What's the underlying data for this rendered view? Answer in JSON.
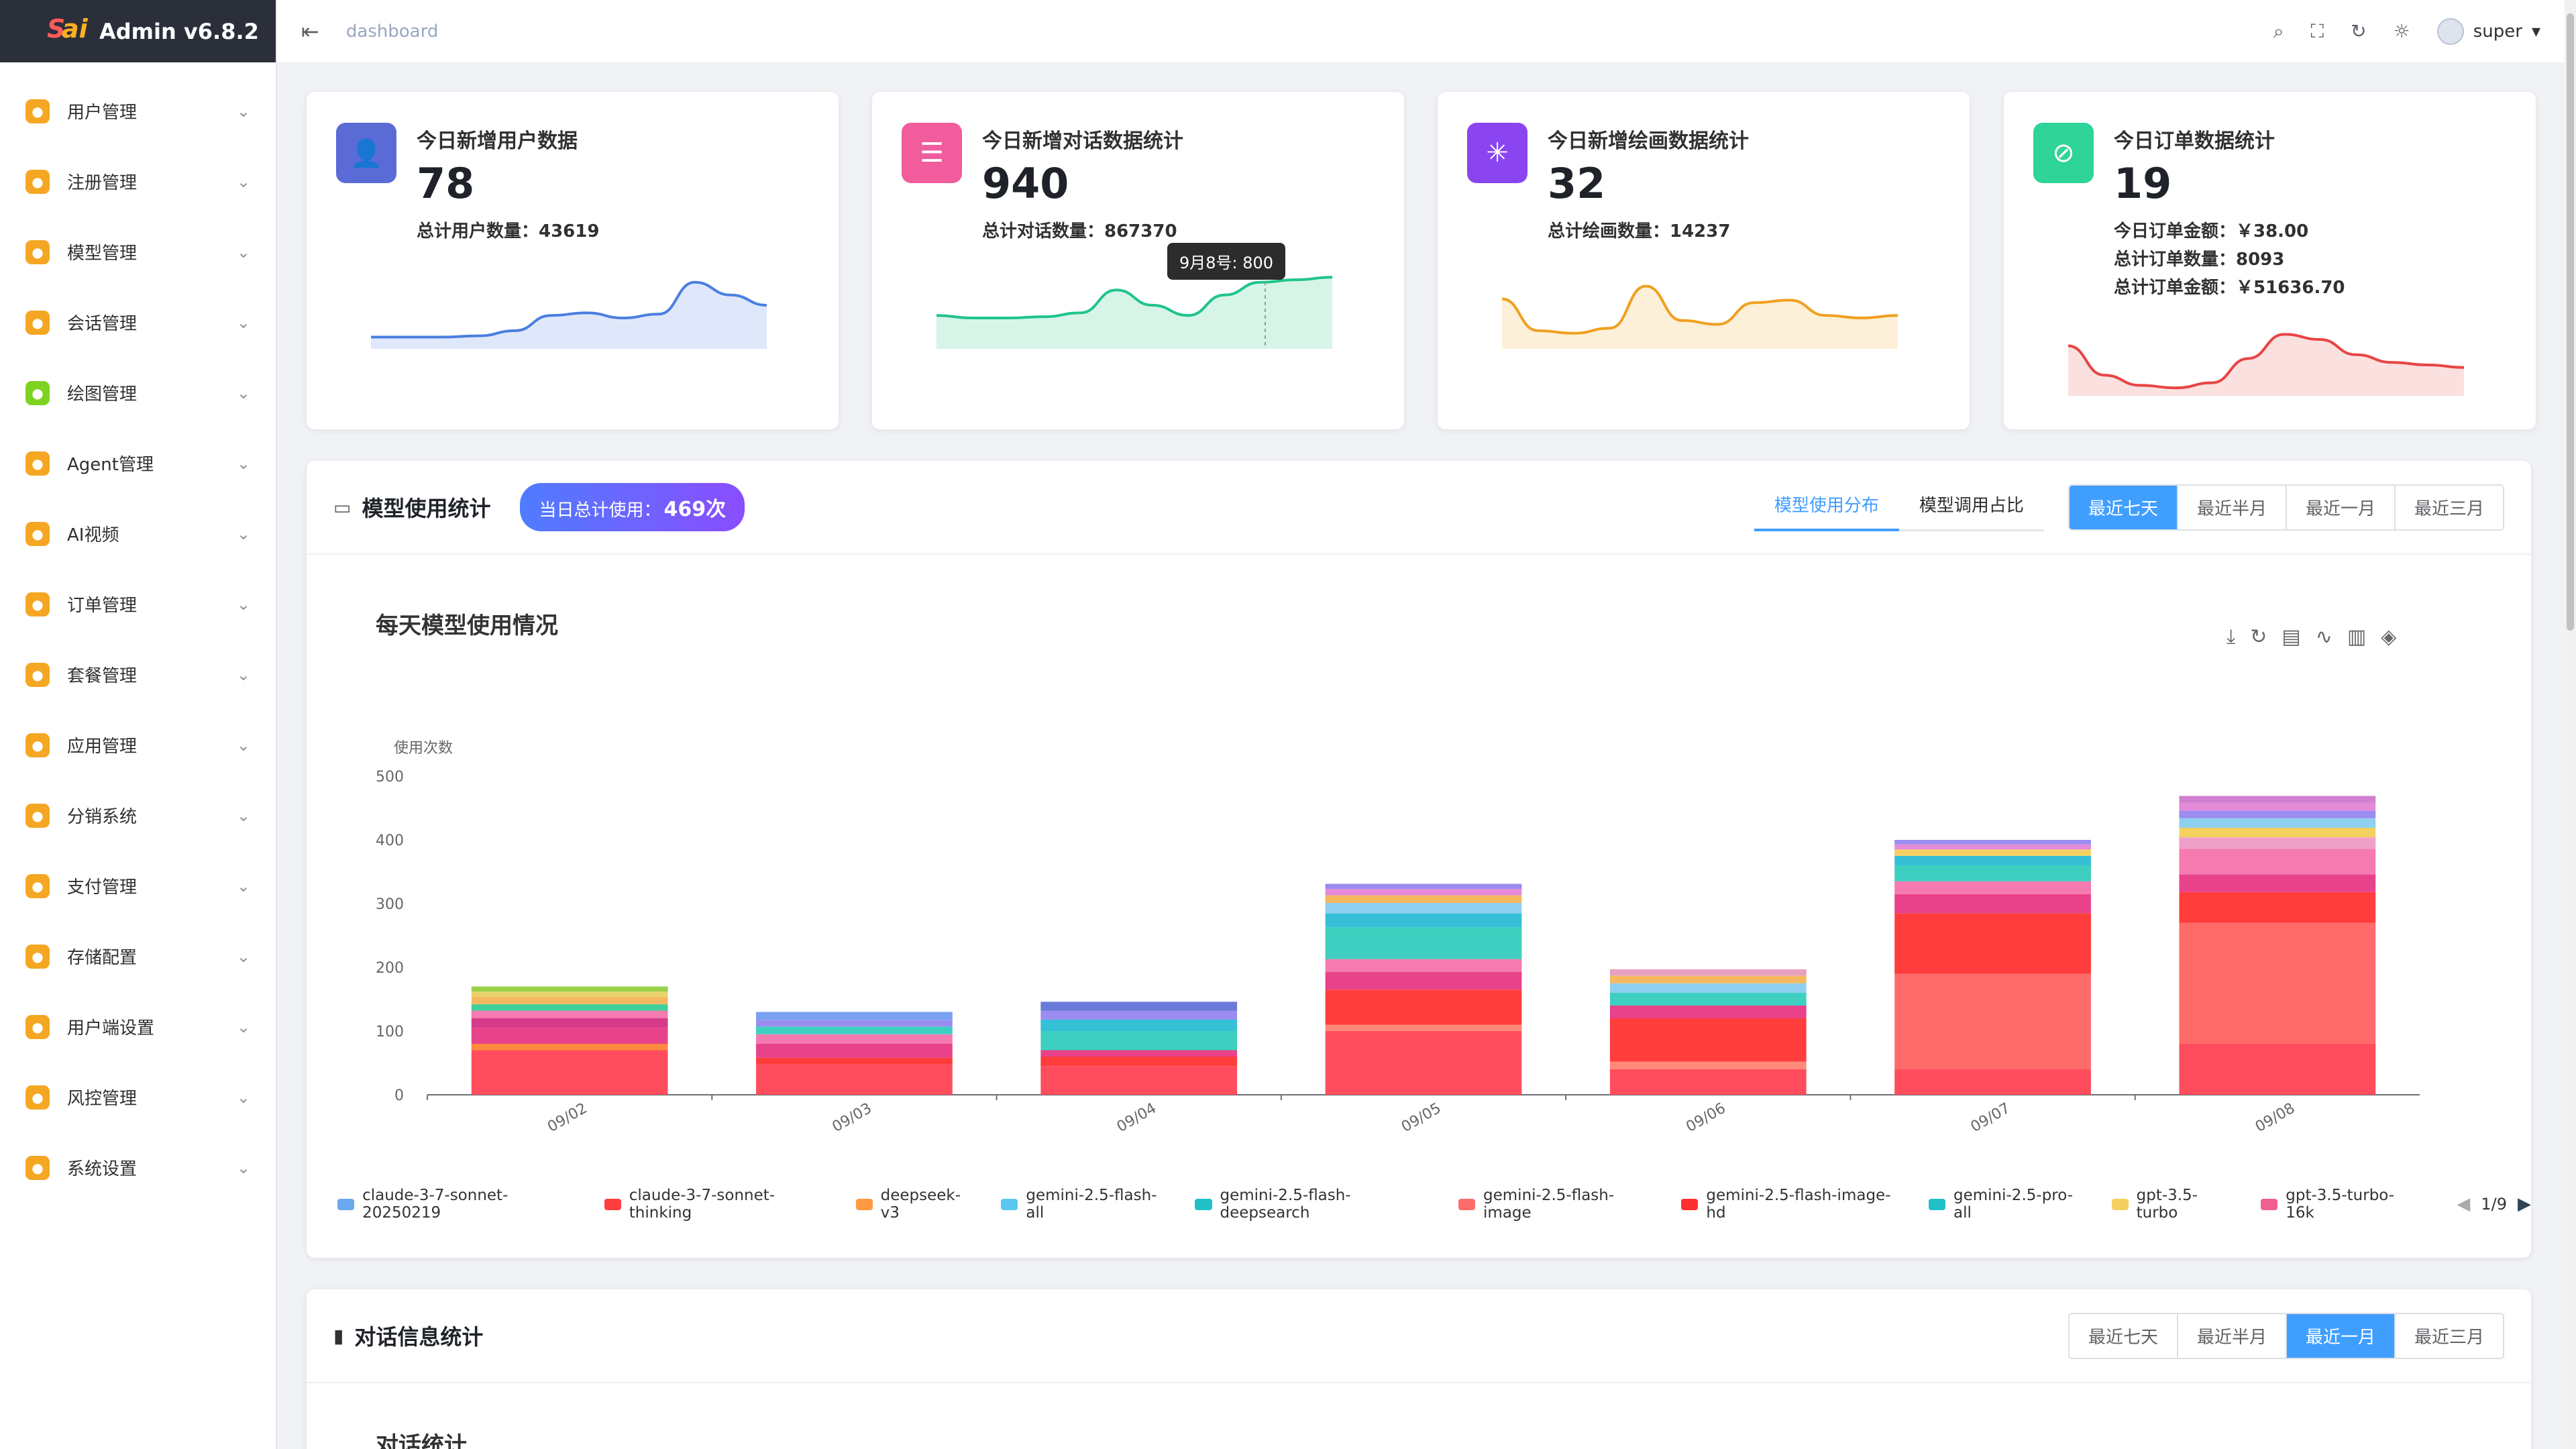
{
  "app": {
    "title": "Admin v6.8.2"
  },
  "topbar": {
    "breadcrumb": "dashboard",
    "user": "super"
  },
  "sidebar": {
    "items": [
      {
        "label": "用户管理",
        "icon": "user-manage-icon",
        "color": "#f5a623"
      },
      {
        "label": "注册管理",
        "icon": "register-icon",
        "color": "#f5a623"
      },
      {
        "label": "模型管理",
        "icon": "model-icon",
        "color": "#f5a623"
      },
      {
        "label": "会话管理",
        "icon": "chat-icon",
        "color": "#f5a623"
      },
      {
        "label": "绘图管理",
        "icon": "paint-icon",
        "color": "#7ed321"
      },
      {
        "label": "Agent管理",
        "icon": "agent-icon",
        "color": "#f5a623"
      },
      {
        "label": "AI视频",
        "icon": "video-icon",
        "color": "#f5a623"
      },
      {
        "label": "订单管理",
        "icon": "order-icon",
        "color": "#f5a623"
      },
      {
        "label": "套餐管理",
        "icon": "package-icon",
        "color": "#f5a623"
      },
      {
        "label": "应用管理",
        "icon": "apps-icon",
        "color": "#f5a623"
      },
      {
        "label": "分销系统",
        "icon": "distribution-icon",
        "color": "#f5a623"
      },
      {
        "label": "支付管理",
        "icon": "payment-icon",
        "color": "#f5a623"
      },
      {
        "label": "存储配置",
        "icon": "storage-icon",
        "color": "#f5a623"
      },
      {
        "label": "用户端设置",
        "icon": "client-settings-icon",
        "color": "#f5a623"
      },
      {
        "label": "风控管理",
        "icon": "risk-shield-icon",
        "color": "#f5a623"
      },
      {
        "label": "系统设置",
        "icon": "system-gear-icon",
        "color": "#f5a623"
      }
    ]
  },
  "stats": [
    {
      "title": "今日新增用户数据",
      "value": "78",
      "subs": [
        "总计用户数量：43619"
      ],
      "icon_color": "#5b6bd6",
      "line_color": "#4a7fe0",
      "fill_color": "#dfe8fb",
      "spark": [
        5,
        5,
        5,
        6,
        10,
        22,
        24,
        20,
        23,
        48,
        38,
        30
      ]
    },
    {
      "title": "今日新增对话数据统计",
      "value": "940",
      "subs": [
        "总计对话数量：867370"
      ],
      "icon_color": "#f05c9c",
      "line_color": "#20c48a",
      "fill_color": "#d6f5e8",
      "spark": [
        22,
        20,
        20,
        21,
        24,
        42,
        30,
        22,
        38,
        48,
        50,
        52
      ],
      "tooltip": "9月8号: 800"
    },
    {
      "title": "今日新增绘画数据统计",
      "value": "32",
      "subs": [
        "总计绘画数量：14237"
      ],
      "icon_color": "#8a44f0",
      "line_color": "#f0a020",
      "fill_color": "#fdf0d8",
      "spark": [
        35,
        10,
        8,
        12,
        45,
        18,
        15,
        32,
        34,
        22,
        20,
        22
      ]
    },
    {
      "title": "今日订单数据统计",
      "value": "19",
      "subs": [
        "今日订单金额：￥38.00",
        "总计订单数量：8093",
        "总计订单金额：￥51636.70"
      ],
      "icon_color": "#2ed498",
      "line_color": "#e84444",
      "fill_color": "#fbe0e0",
      "spark": [
        35,
        12,
        4,
        2,
        6,
        25,
        44,
        40,
        28,
        22,
        20,
        18
      ]
    }
  ],
  "model_panel": {
    "title": "模型使用统计",
    "badge_prefix": "当日总计使用：",
    "badge_value": "469次",
    "tabs": [
      "模型使用分布",
      "模型调用占比"
    ],
    "ranges": [
      "最近七天",
      "最近半月",
      "最近一月",
      "最近三月"
    ],
    "legend_page": "1/9"
  },
  "chart_data": {
    "type": "bar",
    "title": "每天模型使用情况",
    "ylabel": "使用次数",
    "ylim": [
      0,
      500
    ],
    "yticks": [
      0,
      100,
      200,
      300,
      400,
      500
    ],
    "categories": [
      "09/02",
      "09/03",
      "09/04",
      "09/05",
      "09/06",
      "09/07",
      "09/08"
    ],
    "totals": [
      170,
      130,
      146,
      331,
      197,
      400,
      469
    ],
    "segments": [
      [
        {
          "value": 70,
          "color": "#ff4d5e"
        },
        {
          "value": 10,
          "color": "#ff8a40"
        },
        {
          "value": 25,
          "color": "#e8428a"
        },
        {
          "value": 15,
          "color": "#d63a8a"
        },
        {
          "value": 12,
          "color": "#f47ab0"
        },
        {
          "value": 10,
          "color": "#3fcf9a"
        },
        {
          "value": 12,
          "color": "#f4b860"
        },
        {
          "value": 8,
          "color": "#e8d36a"
        },
        {
          "value": 8,
          "color": "#9ad04a"
        }
      ],
      [
        {
          "value": 48,
          "color": "#ff4d5e"
        },
        {
          "value": 10,
          "color": "#ff3d3d"
        },
        {
          "value": 22,
          "color": "#e8428a"
        },
        {
          "value": 15,
          "color": "#f47ab0"
        },
        {
          "value": 12,
          "color": "#3fcfc0"
        },
        {
          "value": 10,
          "color": "#9a8cf0"
        },
        {
          "value": 13,
          "color": "#7aa0f0"
        }
      ],
      [
        {
          "value": 45,
          "color": "#ff4d5e"
        },
        {
          "value": 15,
          "color": "#ff3d3d"
        },
        {
          "value": 10,
          "color": "#e8428a"
        },
        {
          "value": 30,
          "color": "#3fcfc0"
        },
        {
          "value": 18,
          "color": "#36c0d8"
        },
        {
          "value": 14,
          "color": "#9a8cf0"
        },
        {
          "value": 14,
          "color": "#6a7ad8"
        }
      ],
      [
        {
          "value": 100,
          "color": "#ff4d5e"
        },
        {
          "value": 10,
          "color": "#ff8a7a"
        },
        {
          "value": 55,
          "color": "#ff3d3d"
        },
        {
          "value": 28,
          "color": "#e8428a"
        },
        {
          "value": 20,
          "color": "#f47ab0"
        },
        {
          "value": 50,
          "color": "#3fcfc0"
        },
        {
          "value": 22,
          "color": "#36c0d8"
        },
        {
          "value": 16,
          "color": "#8fd0f0"
        },
        {
          "value": 12,
          "color": "#f4b860"
        },
        {
          "value": 10,
          "color": "#e58ad8"
        },
        {
          "value": 8,
          "color": "#9a8cf0"
        }
      ],
      [
        {
          "value": 40,
          "color": "#ff4d5e"
        },
        {
          "value": 12,
          "color": "#ff8a7a"
        },
        {
          "value": 68,
          "color": "#ff3d3d"
        },
        {
          "value": 20,
          "color": "#e8428a"
        },
        {
          "value": 20,
          "color": "#3fcfc0"
        },
        {
          "value": 15,
          "color": "#8fd0f0"
        },
        {
          "value": 12,
          "color": "#f4b860"
        },
        {
          "value": 10,
          "color": "#e8a0c0"
        }
      ],
      [
        {
          "value": 40,
          "color": "#ff4d5e"
        },
        {
          "value": 150,
          "color": "#ff6b6b"
        },
        {
          "value": 95,
          "color": "#ff3d3d"
        },
        {
          "value": 30,
          "color": "#e8428a"
        },
        {
          "value": 20,
          "color": "#f47ab0"
        },
        {
          "value": 25,
          "color": "#3fcfc0"
        },
        {
          "value": 15,
          "color": "#36c0d8"
        },
        {
          "value": 10,
          "color": "#f4d060"
        },
        {
          "value": 8,
          "color": "#e58ad8"
        },
        {
          "value": 7,
          "color": "#9a8cf0"
        }
      ],
      [
        {
          "value": 80,
          "color": "#ff4d5e"
        },
        {
          "value": 190,
          "color": "#ff6b6b"
        },
        {
          "value": 48,
          "color": "#ff3d3d"
        },
        {
          "value": 28,
          "color": "#e8428a"
        },
        {
          "value": 40,
          "color": "#f47ab0"
        },
        {
          "value": 18,
          "color": "#f0a0c8"
        },
        {
          "value": 15,
          "color": "#f4d060"
        },
        {
          "value": 15,
          "color": "#8fd0f0"
        },
        {
          "value": 12,
          "color": "#9a8cf0"
        },
        {
          "value": 12,
          "color": "#e58ad8"
        },
        {
          "value": 11,
          "color": "#d080d0"
        }
      ]
    ],
    "legend": [
      {
        "name": "claude-3-7-sonnet-20250219",
        "color": "#6aa8f0"
      },
      {
        "name": "claude-3-7-sonnet-thinking",
        "color": "#ff3d3d"
      },
      {
        "name": "deepseek-v3",
        "color": "#ff9a40"
      },
      {
        "name": "gemini-2.5-flash-all",
        "color": "#5ac8f0"
      },
      {
        "name": "gemini-2.5-flash-deepsearch",
        "color": "#20c0c8"
      },
      {
        "name": "gemini-2.5-flash-image",
        "color": "#ff6b6b"
      },
      {
        "name": "gemini-2.5-flash-image-hd",
        "color": "#ff3030"
      },
      {
        "name": "gemini-2.5-pro-all",
        "color": "#20c0c8"
      },
      {
        "name": "gpt-3.5-turbo",
        "color": "#f4d060"
      },
      {
        "name": "gpt-3.5-turbo-16k",
        "color": "#f06090"
      }
    ]
  },
  "dialog_panel": {
    "title": "对话信息统计",
    "ranges": [
      "最近七天",
      "最近半月",
      "最近一月",
      "最近三月"
    ],
    "chart_title": "对话统计"
  }
}
